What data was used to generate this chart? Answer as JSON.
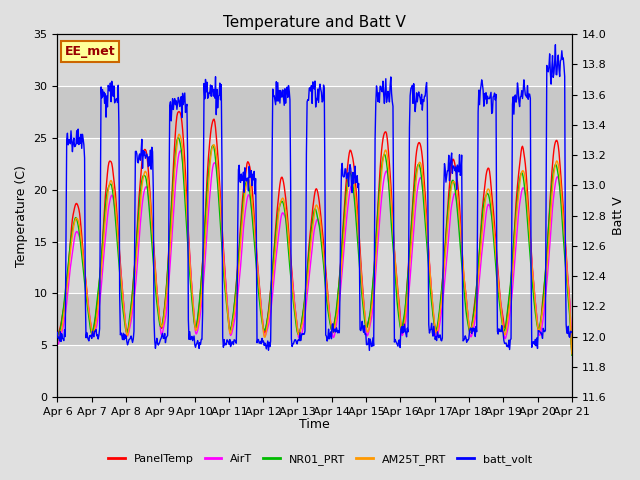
{
  "title": "Temperature and Batt V",
  "xlabel": "Time",
  "ylabel_left": "Temperature (C)",
  "ylabel_right": "Batt V",
  "annotation": "EE_met",
  "x_tick_labels": [
    "Apr 6",
    "Apr 7",
    "Apr 8",
    "Apr 9",
    "Apr 10",
    "Apr 11",
    "Apr 12",
    "Apr 13",
    "Apr 14",
    "Apr 15",
    "Apr 16",
    "Apr 17",
    "Apr 18",
    "Apr 19",
    "Apr 20",
    "Apr 21"
  ],
  "ylim_left": [
    0,
    35
  ],
  "ylim_right": [
    11.6,
    14.0
  ],
  "yticks_left": [
    0,
    5,
    10,
    15,
    20,
    25,
    30,
    35
  ],
  "yticks_right": [
    11.6,
    11.8,
    12.0,
    12.2,
    12.4,
    12.6,
    12.8,
    13.0,
    13.2,
    13.4,
    13.6,
    13.8,
    14.0
  ],
  "series_colors": {
    "PanelTemp": "#ff0000",
    "AirT": "#ff00ff",
    "NR01_PRT": "#00bb00",
    "AM25T_PRT": "#ff9900",
    "batt_volt": "#0000ff"
  },
  "legend_labels": [
    "PanelTemp",
    "AirT",
    "NR01_PRT",
    "AM25T_PRT",
    "batt_volt"
  ],
  "n_days": 15,
  "pts_per_day": 48,
  "day_amplitudes": [
    14,
    18,
    19,
    23,
    22,
    18,
    16,
    15,
    19,
    21,
    20,
    18,
    17,
    19,
    20
  ],
  "temp_night_base": 5.0,
  "batt_night": 12.0,
  "batt_day": 13.6,
  "batt_spike_max": [
    13.3,
    13.6,
    13.2,
    13.55,
    13.6,
    13.05,
    13.6,
    13.6,
    13.05,
    13.6,
    13.6,
    13.1,
    13.6,
    13.6,
    13.8
  ],
  "bg_band_color1": "#d8d8d8",
  "bg_band_color2": "#c8c8c8",
  "fig_bg": "#e0e0e0",
  "grid_color": "#ffffff",
  "annotation_bg": "#ffff99",
  "annotation_border": "#cc6600",
  "annotation_text_color": "#990000"
}
